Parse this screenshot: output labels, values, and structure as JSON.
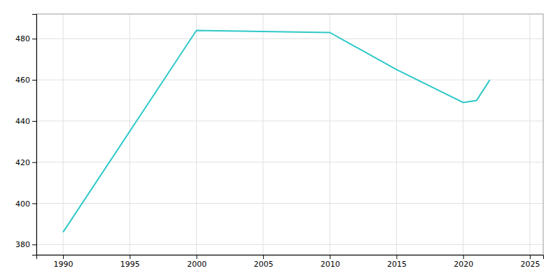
{
  "chart_data": {
    "type": "line",
    "x": [
      1990,
      2000,
      2010,
      2015,
      2020,
      2021,
      2022
    ],
    "values": [
      386,
      484,
      483,
      465,
      449,
      450,
      460
    ],
    "color": "#2ec8c8",
    "xlim": [
      1988,
      2026
    ],
    "ylim": [
      375,
      492
    ],
    "xticks": [
      1990,
      1995,
      2000,
      2005,
      2010,
      2015,
      2020,
      2025
    ],
    "yticks": [
      380,
      400,
      420,
      440,
      460,
      480
    ],
    "grid": true
  }
}
